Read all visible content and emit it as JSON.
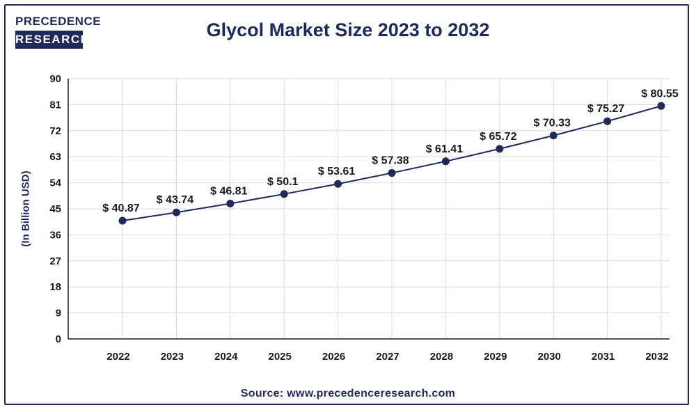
{
  "logo": {
    "line1": "PRECEDENCE",
    "line2": "RESEARCH"
  },
  "source": "Source: www.precedenceresearch.com",
  "colors": {
    "primary": "#1f2a5a",
    "grid": "#d9d9d9"
  },
  "chart_data": {
    "type": "line",
    "title": "Glycol Market Size 2023 to 2032",
    "xlabel": "",
    "ylabel": "(In Billion USD)",
    "ylim": [
      0,
      90
    ],
    "yticks": [
      0,
      9,
      18,
      27,
      36,
      45,
      54,
      63,
      72,
      81,
      90
    ],
    "grid": true,
    "x": [
      "2022",
      "2023",
      "2024",
      "2025",
      "2026",
      "2027",
      "2028",
      "2029",
      "2030",
      "2031",
      "2032"
    ],
    "series": [
      {
        "values": [
          40.87,
          43.74,
          46.81,
          50.1,
          53.61,
          57.38,
          61.41,
          65.72,
          70.33,
          75.27,
          80.55
        ],
        "labels": [
          "$ 40.87",
          "$ 43.74",
          "$ 46.81",
          "$ 50.1",
          "$ 53.61",
          "$ 57.38",
          "$ 61.41",
          "$ 65.72",
          "$ 70.33",
          "$ 75.27",
          "$ 80.55"
        ]
      }
    ]
  }
}
